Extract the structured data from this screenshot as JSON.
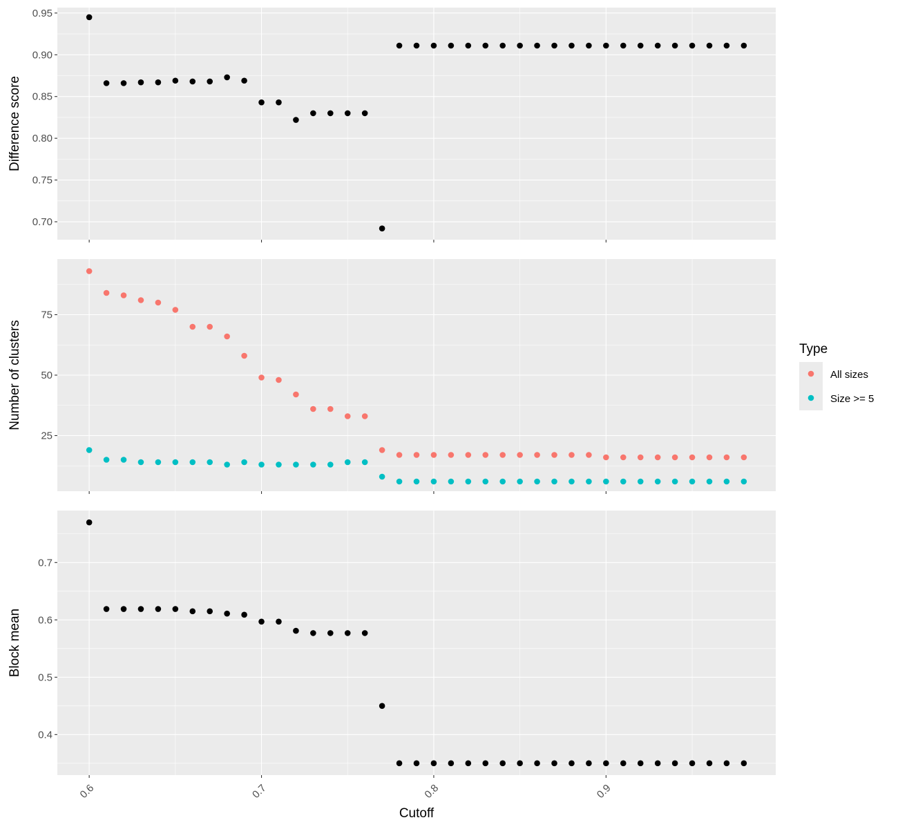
{
  "chart_data": {
    "type": "scatter",
    "xlabel": "Cutoff",
    "x_ticks": [
      {
        "value": 0.6,
        "label": "0.6"
      },
      {
        "value": 0.7,
        "label": "0.7"
      },
      {
        "value": 0.8,
        "label": "0.8"
      },
      {
        "value": 0.9,
        "label": "0.9"
      }
    ],
    "x": [
      0.6,
      0.61,
      0.62,
      0.63,
      0.64,
      0.65,
      0.66,
      0.67,
      0.68,
      0.69,
      0.7,
      0.71,
      0.72,
      0.73,
      0.74,
      0.75,
      0.76,
      0.77,
      0.78,
      0.79,
      0.8,
      0.81,
      0.82,
      0.83,
      0.84,
      0.85,
      0.86,
      0.87,
      0.88,
      0.89,
      0.9,
      0.91,
      0.92,
      0.93,
      0.94,
      0.95,
      0.96,
      0.97,
      0.98
    ],
    "xlim": [
      0.5815,
      0.9985
    ],
    "grid": true,
    "legend_position": "right",
    "colors": {
      "all_sizes": "#F8766D",
      "size_ge_5": "#00BFC4",
      "single": "#000000",
      "panel_bg": "#EBEBEB"
    },
    "panels": [
      {
        "ylabel": "Difference score",
        "ylim": [
          0.6785,
          0.9565
        ],
        "y_ticks": [
          {
            "value": 0.7,
            "label": "0.70"
          },
          {
            "value": 0.75,
            "label": "0.75"
          },
          {
            "value": 0.8,
            "label": "0.80"
          },
          {
            "value": 0.85,
            "label": "0.85"
          },
          {
            "value": 0.9,
            "label": "0.90"
          },
          {
            "value": 0.95,
            "label": "0.95"
          }
        ],
        "series": [
          {
            "color": "#000000",
            "values": [
              0.945,
              0.866,
              0.866,
              0.867,
              0.867,
              0.869,
              0.868,
              0.868,
              0.873,
              0.869,
              0.843,
              0.843,
              0.822,
              0.83,
              0.83,
              0.83,
              0.83,
              0.692,
              0.911,
              0.911,
              0.911,
              0.911,
              0.911,
              0.911,
              0.911,
              0.911,
              0.911,
              0.911,
              0.911,
              0.911,
              0.911,
              0.911,
              0.911,
              0.911,
              0.911,
              0.911,
              0.911,
              0.911,
              0.911
            ]
          }
        ]
      },
      {
        "ylabel": "Number of clusters",
        "ylim": [
          2.0,
          98.0
        ],
        "y_ticks": [
          {
            "value": 25,
            "label": "25"
          },
          {
            "value": 50,
            "label": "50"
          },
          {
            "value": 75,
            "label": "75"
          }
        ],
        "series": [
          {
            "name": "All sizes",
            "color": "#F8766D",
            "values": [
              93,
              84,
              83,
              81,
              80,
              77,
              70,
              70,
              66,
              58,
              49,
              48,
              42,
              36,
              36,
              33,
              33,
              19,
              17,
              17,
              17,
              17,
              17,
              17,
              17,
              17,
              17,
              17,
              17,
              17,
              16,
              16,
              16,
              16,
              16,
              16,
              16,
              16,
              16
            ]
          },
          {
            "name": "Size >= 5",
            "color": "#00BFC4",
            "values": [
              19,
              15,
              15,
              14,
              14,
              14,
              14,
              14,
              13,
              14,
              13,
              13,
              13,
              13,
              13,
              14,
              14,
              8,
              6,
              6,
              6,
              6,
              6,
              6,
              6,
              6,
              6,
              6,
              6,
              6,
              6,
              6,
              6,
              6,
              6,
              6,
              6,
              6,
              6
            ]
          }
        ]
      },
      {
        "ylabel": "Block mean",
        "ylim": [
          0.3293,
          0.7907
        ],
        "y_ticks": [
          {
            "value": 0.4,
            "label": "0.4"
          },
          {
            "value": 0.5,
            "label": "0.5"
          },
          {
            "value": 0.6,
            "label": "0.6"
          },
          {
            "value": 0.7,
            "label": "0.7"
          }
        ],
        "series": [
          {
            "color": "#000000",
            "values": [
              0.77,
              0.619,
              0.619,
              0.619,
              0.619,
              0.619,
              0.615,
              0.615,
              0.611,
              0.609,
              0.597,
              0.597,
              0.581,
              0.577,
              0.577,
              0.577,
              0.577,
              0.45,
              0.35,
              0.35,
              0.35,
              0.35,
              0.35,
              0.35,
              0.35,
              0.35,
              0.35,
              0.35,
              0.35,
              0.35,
              0.35,
              0.35,
              0.35,
              0.35,
              0.35,
              0.35,
              0.35,
              0.35,
              0.35
            ]
          }
        ]
      }
    ],
    "legend": {
      "title": "Type",
      "items": [
        {
          "label": "All sizes",
          "color": "#F8766D"
        },
        {
          "label": "Size >= 5",
          "color": "#00BFC4"
        }
      ]
    }
  }
}
